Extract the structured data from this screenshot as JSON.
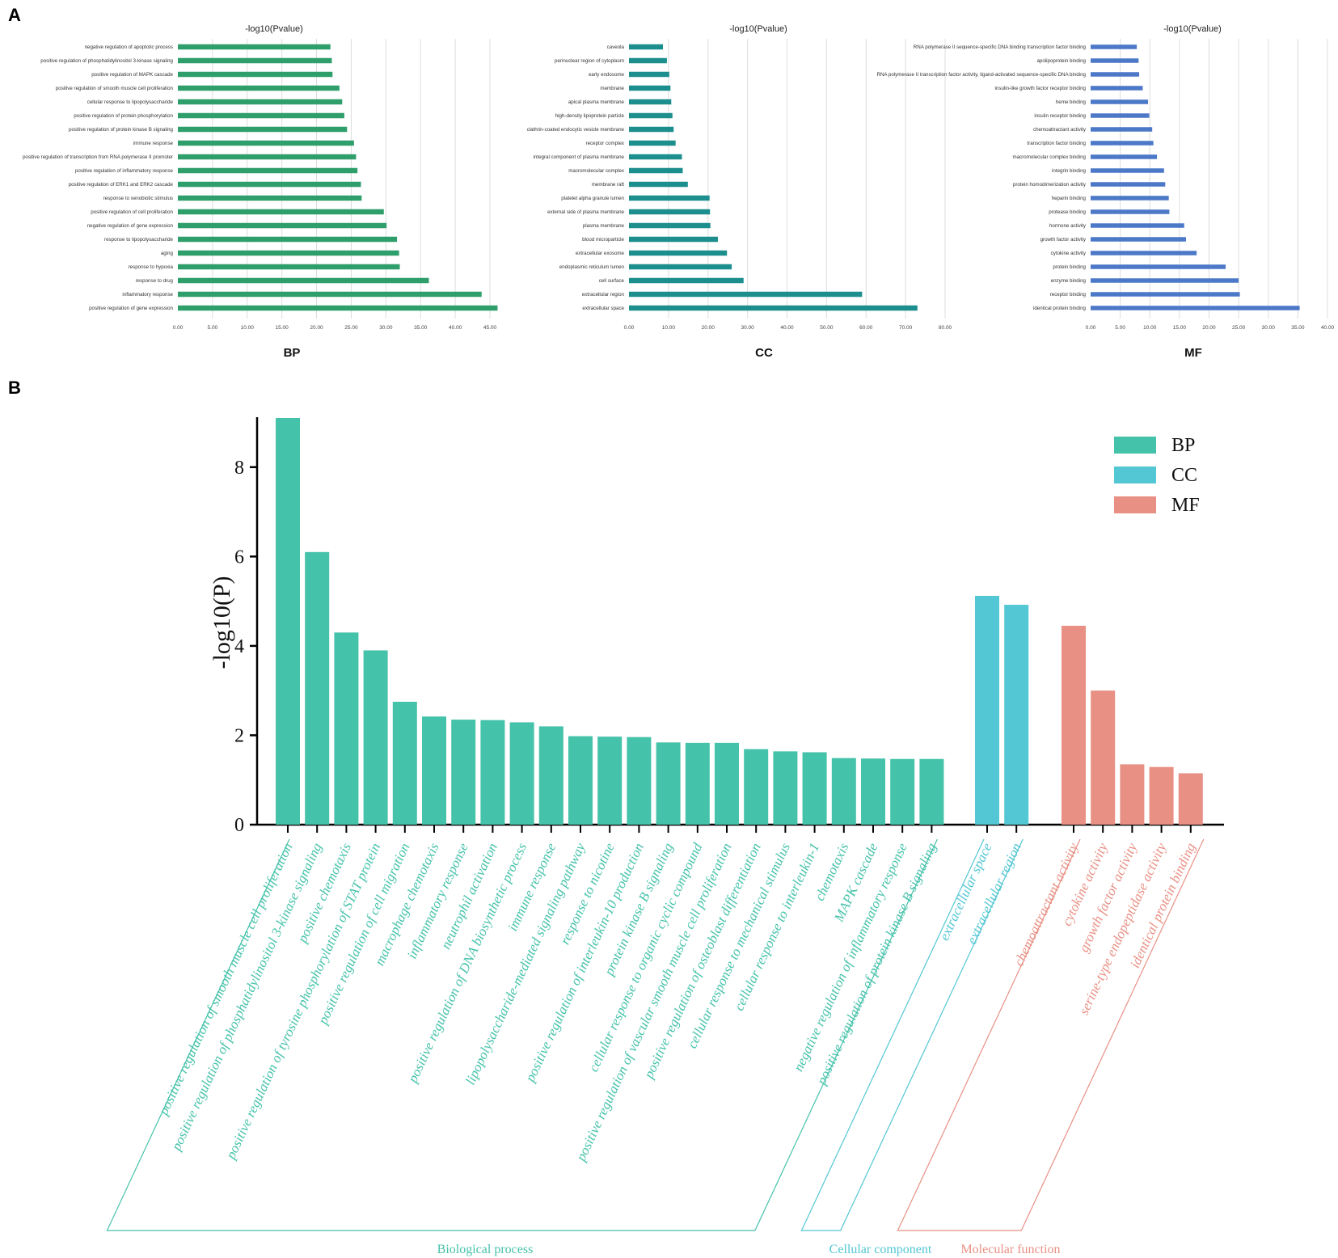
{
  "panel_labels": {
    "a": "A",
    "b": "B"
  },
  "colors": {
    "bp_a": "#2e9e6b",
    "cc_a": "#1c8e8e",
    "mf_a": "#4c78c8",
    "bp_b": "#45c2aa",
    "cc_b": "#53c7d3",
    "mf_b": "#e89084",
    "grid": "#dddddd",
    "axis": "#000000"
  },
  "chart_data": [
    {
      "type": "bar",
      "orientation": "horizontal",
      "panel": "A",
      "title": "-log10(Pvalue)",
      "name": "BP",
      "xlim": [
        0,
        45
      ],
      "ticks": [
        "0.00",
        "5.00",
        "10.00",
        "15.00",
        "20.00",
        "25.00",
        "30.00",
        "35.00",
        "40.00",
        "45.00"
      ],
      "tick_values": [
        0,
        5,
        10,
        15,
        20,
        25,
        30,
        35,
        40,
        45
      ],
      "categories": [
        "negative regulation of apoptotic process",
        "positive regulation of phosphatidylinositol 3-kinase signaling",
        "positive regulation of MAPK cascade",
        "positive regulation of smooth muscle cell proliferation",
        "cellular response to lipopolysaccharide",
        "positive regulation of protein phosphorylation",
        "positive regulation of protein kinase B signaling",
        "immune response",
        "positive regulation of transcription from RNA polymerase II promoter",
        "positive regulation of inflammatory response",
        "positive regulation of ERK1 and ERK2 cascade",
        "response to xenobiotic stimulus",
        "positive regulation of cell proliferation",
        "negative regulation of gene expression",
        "response to lipopolysaccharide",
        "aging",
        "response to hypoxia",
        "response to drug",
        "inflammatory response",
        "positive regulation of gene expression"
      ],
      "values": [
        22.0,
        22.2,
        22.3,
        23.3,
        23.7,
        24.0,
        24.4,
        25.4,
        25.7,
        25.9,
        26.4,
        26.5,
        29.7,
        30.1,
        31.6,
        31.9,
        32.0,
        36.2,
        43.8,
        46.1
      ]
    },
    {
      "type": "bar",
      "orientation": "horizontal",
      "panel": "A",
      "title": "-log10(Pvalue)",
      "name": "CC",
      "xlim": [
        0,
        80
      ],
      "ticks": [
        "0.00",
        "10.00",
        "20.00",
        "30.00",
        "40.00",
        "50.00",
        "60.00",
        "70.00",
        "80.00"
      ],
      "tick_values": [
        0,
        10,
        20,
        30,
        40,
        50,
        60,
        70,
        80
      ],
      "categories": [
        "caveola",
        "perinuclear region of cytoplasm",
        "early endosome",
        "membrane",
        "apical plasma membrane",
        "high-density lipoprotein particle",
        "clathrin-coated endocytic vesicle membrane",
        "receptor complex",
        "integral component of plasma membrane",
        "macromolecular complex",
        "membrane raft",
        "platelet alpha granule lumen",
        "external side of plasma membrane",
        "plasma membrane",
        "blood microparticle",
        "extracellular exosome",
        "endoplasmic reticulum lumen",
        "cell surface",
        "extracellular region",
        "extracellular space"
      ],
      "values": [
        8.6,
        9.6,
        10.2,
        10.5,
        10.7,
        11.0,
        11.3,
        11.8,
        13.4,
        13.6,
        14.9,
        20.4,
        20.5,
        20.6,
        22.5,
        24.8,
        26.0,
        29.0,
        59.0,
        73.0
      ]
    },
    {
      "type": "bar",
      "orientation": "horizontal",
      "panel": "A",
      "title": "-log10(Pvalue)",
      "name": "MF",
      "xlim": [
        0,
        40
      ],
      "ticks": [
        "0.00",
        "5.00",
        "10.00",
        "15.00",
        "20.00",
        "25.00",
        "30.00",
        "35.00",
        "40.00"
      ],
      "tick_values": [
        0,
        5,
        10,
        15,
        20,
        25,
        30,
        35,
        40
      ],
      "categories": [
        "RNA polymerase II sequence-specific DNA binding transcription factor binding",
        "apolipoprotein binding",
        "RNA polymerase II transcription factor activity, ligand-activated sequence-specific DNA binding",
        "insulin-like growth factor receptor binding",
        "heme binding",
        "insulin receptor binding",
        "chemoattractant activity",
        "transcription factor binding",
        "macromolecular complex binding",
        "integrin binding",
        "protein homodimerization activity",
        "heparin binding",
        "protease binding",
        "hormone activity",
        "growth factor activity",
        "cytokine activity",
        "protein binding",
        "enzyme binding",
        "receptor binding",
        "identical protein binding"
      ],
      "values": [
        7.8,
        8.1,
        8.2,
        8.8,
        9.7,
        9.9,
        10.4,
        10.6,
        11.2,
        12.4,
        12.6,
        13.2,
        13.3,
        15.8,
        16.1,
        17.9,
        22.8,
        25.0,
        25.2,
        35.3
      ]
    },
    {
      "type": "bar",
      "panel": "B",
      "ylabel": "-log10(P)",
      "ylim": [
        0,
        9.1
      ],
      "yticks": [
        "0",
        "2",
        "4",
        "6",
        "8"
      ],
      "ytick_values": [
        0,
        2,
        4,
        6,
        8
      ],
      "legend": [
        "BP",
        "CC",
        "MF"
      ],
      "groups": [
        {
          "name": "BP",
          "label": "Biological process",
          "categories": [
            "positive regulation of smooth muscle cell proliferation",
            "positive regulation of phosphatidylinositol 3-kinase signaling",
            "positive chemotaxis",
            "positive regulation of tyrosine phosphorylation of STAT protein",
            "positive regulation of cell migration",
            "macrophage chemotaxis",
            "inflammatory response",
            "neutrophil activation",
            "positive regulation of DNA biosynthetic process",
            "immune response",
            "lipopolysaccharide-mediated signaling pathway",
            "response to nicotine",
            "positive regulation of interleukin-10 production",
            "protein kinase B signaling",
            "cellular response to organic cyclic compound",
            "positive regulation of vascular smooth muscle cell proliferation",
            "positive regulation of osteoblast differentiation",
            "cellular response to mechanical stimulus",
            "cellular response to interleukin-1",
            "chemotaxis",
            "MAPK cascade",
            "negative regulation of inflammatory response",
            "positive regulation of protein kinase B signaling"
          ],
          "values": [
            9.1,
            6.1,
            4.3,
            3.9,
            2.75,
            2.42,
            2.35,
            2.34,
            2.29,
            2.2,
            1.98,
            1.97,
            1.96,
            1.84,
            1.83,
            1.83,
            1.69,
            1.64,
            1.62,
            1.49,
            1.48,
            1.47,
            1.47
          ]
        },
        {
          "name": "CC",
          "label": "Cellular component",
          "categories": [
            "extracellular space",
            "extracellular region"
          ],
          "values": [
            5.12,
            4.92
          ]
        },
        {
          "name": "MF",
          "label": "Molecular function",
          "categories": [
            "chemoattractant activity",
            "cytokine activity",
            "growth factor activity",
            "serine-type endopeptidase activity",
            "identical protein binding"
          ],
          "values": [
            4.45,
            3.0,
            1.35,
            1.29,
            1.15
          ]
        }
      ]
    }
  ]
}
